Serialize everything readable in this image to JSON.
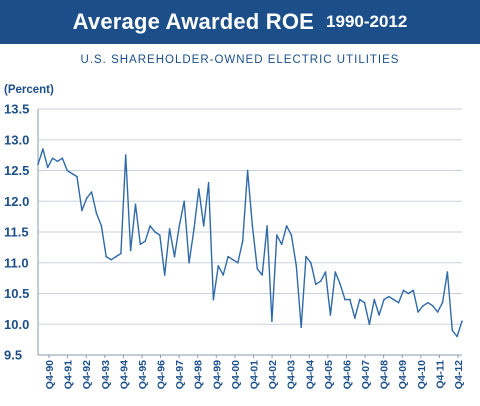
{
  "banner": {
    "title": "Average Awarded ROE",
    "years": "1990-2012"
  },
  "subtitle": "U.S. SHAREHOLDER-OWNED ELECTRIC UTILITIES",
  "colors": {
    "banner": "#1c4f8a",
    "line": "#2f6aa8",
    "grid": "#c8d2dd",
    "text": "#1c4f8a"
  },
  "chart_data": {
    "type": "line",
    "title": "Average Awarded ROE 1990-2012",
    "subtitle": "U.S. SHAREHOLDER-OWNED ELECTRIC UTILITIES",
    "ylabel": "(Percent)",
    "xlabel": "",
    "ylim": [
      9.5,
      13.5
    ],
    "y_ticks": [
      "13.5",
      "13.0",
      "12.5",
      "12.0",
      "11.5",
      "11.0",
      "10.5",
      "10.0",
      "9.5"
    ],
    "x_tick_labels": [
      "Q4-90",
      "Q4-91",
      "Q4-92",
      "Q4-93",
      "Q4-94",
      "Q4-95",
      "Q4-96",
      "Q4-97",
      "Q4-98",
      "Q4-99",
      "Q4-00",
      "Q4-01",
      "Q4-02",
      "Q4-03",
      "Q4-04",
      "Q4-05",
      "Q4-06",
      "Q4-07",
      "Q4-08",
      "Q4-09",
      "Q4-10",
      "Q4-11",
      "Q4-12"
    ],
    "grid": "horizontal",
    "series": [
      {
        "values": [
          12.6,
          12.85,
          12.55,
          12.7,
          12.65,
          12.7,
          12.5,
          12.45,
          12.4,
          11.85,
          12.05,
          12.15,
          11.8,
          11.6,
          11.1,
          11.05,
          11.1,
          11.15,
          12.75,
          11.2,
          11.95,
          11.3,
          11.35,
          11.6,
          11.5,
          11.45,
          10.8,
          11.55,
          11.1,
          11.6,
          12.0,
          11.0,
          11.55,
          12.2,
          11.6,
          12.3,
          10.4,
          10.95,
          10.8,
          11.1,
          11.05,
          11.0,
          11.35,
          12.5,
          11.6,
          10.9,
          10.8,
          11.6,
          10.05,
          11.45,
          11.3,
          11.6,
          11.45,
          10.95,
          9.95,
          11.1,
          11.0,
          10.65,
          10.7,
          10.85,
          10.15,
          10.85,
          10.65,
          10.4,
          10.4,
          10.1,
          10.4,
          10.35,
          10.0,
          10.4,
          10.15,
          10.4,
          10.45,
          10.4,
          10.35,
          10.55,
          10.5,
          10.55,
          10.2,
          10.3,
          10.35,
          10.3,
          10.2,
          10.35,
          10.85,
          9.9,
          9.8,
          10.05
        ]
      }
    ]
  }
}
